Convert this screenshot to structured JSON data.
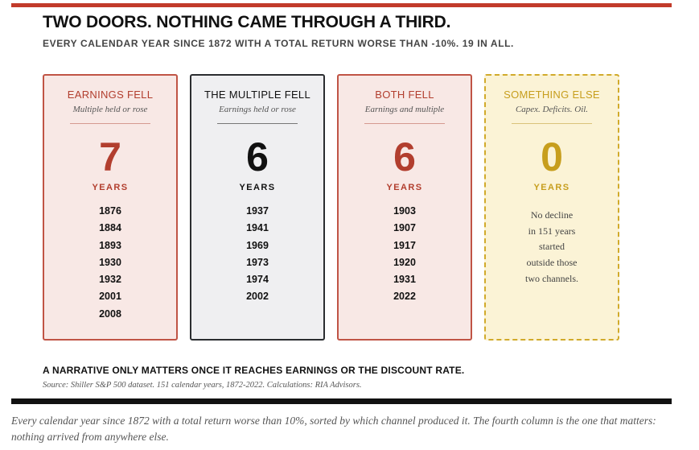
{
  "figure": {
    "title": "TWO DOORS. NOTHING CAME THROUGH A THIRD.",
    "subtitle": "EVERY CALENDAR YEAR SINCE 1872 WITH A TOTAL RETURN WORSE THAN -10%. 19 IN ALL.",
    "columns": [
      {
        "heading": "EARNINGS FELL",
        "subheading": "Multiple held or rose",
        "count": "7",
        "unit": "YEARS",
        "years": [
          "1876",
          "1884",
          "1893",
          "1930",
          "1932",
          "2001",
          "2008"
        ],
        "accent": "#b23e2e"
      },
      {
        "heading": "THE MULTIPLE FELL",
        "subheading": "Earnings held or rose",
        "count": "6",
        "unit": "YEARS",
        "years": [
          "1937",
          "1941",
          "1969",
          "1973",
          "1974",
          "2002"
        ],
        "accent": "#111111"
      },
      {
        "heading": "BOTH FELL",
        "subheading": "Earnings and multiple",
        "count": "6",
        "unit": "YEARS",
        "years": [
          "1903",
          "1907",
          "1917",
          "1920",
          "1931",
          "2022"
        ],
        "accent": "#b23e2e"
      },
      {
        "heading": "SOMETHING ELSE",
        "subheading": "Capex. Deficits. Oil.",
        "count": "0",
        "unit": "YEARS",
        "note": "No decline\nin 151 years\nstarted\noutside those\ntwo channels.",
        "accent": "#c79e1d"
      }
    ],
    "takeaway": "A NARRATIVE ONLY MATTERS ONCE IT REACHES EARNINGS OR THE DISCOUNT RATE.",
    "source": "Source: Shiller S&P 500 dataset. 151 calendar years, 1872-2022. Calculations: RIA Advisors."
  },
  "caption": "Every calendar year since 1872 with a total return worse than 10%, sorted by which channel produced it. The fourth column is the one that matters: nothing arrived from anywhere else."
}
